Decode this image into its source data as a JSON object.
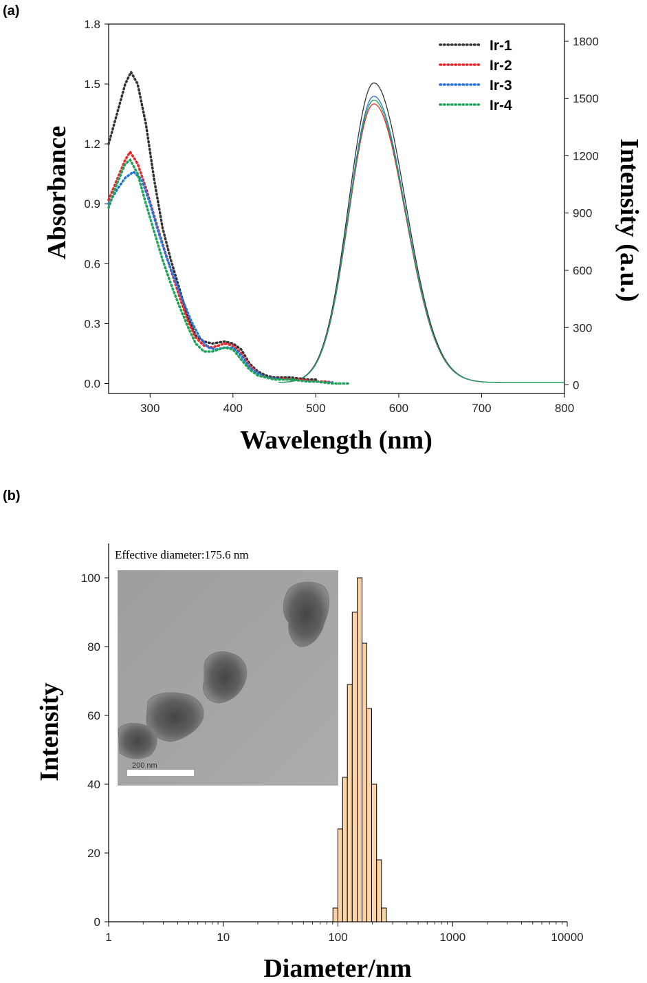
{
  "chart_data": [
    {
      "panel": "(a)",
      "type": "line",
      "xlabel": "Wavelength (nm)",
      "ylabel": "Absorbance",
      "y2label": "Intensity (a.u.)",
      "xlim": [
        250,
        800
      ],
      "ylim": [
        -0.05,
        1.8
      ],
      "y2lim": [
        -45,
        1890
      ],
      "xticks": [
        300,
        400,
        500,
        600,
        700,
        800
      ],
      "yticks": [
        "0.0",
        "0.3",
        "0.6",
        "0.9",
        "1.2",
        "1.5",
        "1.8"
      ],
      "y2ticks": [
        "0",
        "300",
        "600",
        "900",
        "1200",
        "1500",
        "1800"
      ],
      "legend_position": "top-right",
      "colors": {
        "Ir-1": "#333333",
        "Ir-2": "#e8282a",
        "Ir-3": "#2673d9",
        "Ir-4": "#1fa35a"
      },
      "absorbance_series": [
        {
          "name": "Ir-1",
          "x": [
            250,
            260,
            270,
            277,
            285,
            295,
            305,
            315,
            325,
            335,
            345,
            355,
            365,
            375,
            390,
            400,
            410,
            420,
            430,
            440,
            450,
            460,
            470,
            480,
            490,
            500
          ],
          "values": [
            1.2,
            1.35,
            1.5,
            1.56,
            1.5,
            1.3,
            1.02,
            0.78,
            0.62,
            0.48,
            0.34,
            0.24,
            0.21,
            0.2,
            0.21,
            0.2,
            0.17,
            0.1,
            0.06,
            0.04,
            0.03,
            0.03,
            0.03,
            0.025,
            0.02,
            0.02
          ]
        },
        {
          "name": "Ir-2",
          "x": [
            250,
            260,
            270,
            276,
            285,
            295,
            305,
            315,
            325,
            335,
            345,
            355,
            365,
            375,
            390,
            400,
            410,
            420,
            430,
            440,
            450,
            460,
            470,
            480,
            490,
            500,
            510,
            520
          ],
          "values": [
            0.92,
            1.02,
            1.12,
            1.16,
            1.1,
            0.98,
            0.84,
            0.7,
            0.57,
            0.44,
            0.32,
            0.23,
            0.19,
            0.18,
            0.2,
            0.19,
            0.15,
            0.09,
            0.05,
            0.03,
            0.025,
            0.025,
            0.02,
            0.02,
            0.015,
            0.01,
            0.01,
            0.005
          ]
        },
        {
          "name": "Ir-3",
          "x": [
            250,
            260,
            270,
            280,
            290,
            300,
            310,
            320,
            330,
            340,
            350,
            360,
            370,
            380,
            390,
            400,
            410,
            420,
            430,
            440,
            450,
            460,
            470,
            480,
            490,
            500,
            510,
            520
          ],
          "values": [
            0.9,
            0.97,
            1.03,
            1.06,
            1.02,
            0.9,
            0.76,
            0.63,
            0.52,
            0.41,
            0.31,
            0.23,
            0.18,
            0.17,
            0.18,
            0.18,
            0.14,
            0.08,
            0.05,
            0.03,
            0.025,
            0.02,
            0.02,
            0.015,
            0.01,
            0.01,
            0.005,
            0.005
          ]
        },
        {
          "name": "Ir-4",
          "x": [
            250,
            260,
            270,
            276,
            285,
            295,
            305,
            315,
            325,
            335,
            345,
            355,
            365,
            375,
            390,
            400,
            410,
            420,
            430,
            440,
            450,
            460,
            470,
            480,
            490,
            500,
            510,
            520,
            530,
            540
          ],
          "values": [
            0.88,
            1.0,
            1.1,
            1.12,
            1.05,
            0.9,
            0.76,
            0.62,
            0.5,
            0.39,
            0.29,
            0.2,
            0.16,
            0.16,
            0.18,
            0.17,
            0.12,
            0.07,
            0.04,
            0.03,
            0.02,
            0.02,
            0.02,
            0.015,
            0.01,
            0.01,
            0.005,
            0.0,
            0.0,
            0.0
          ]
        }
      ],
      "emission_series": [
        {
          "name": "Ir-1",
          "peak_x": 570,
          "peak": 1570,
          "width_left": 30,
          "width_right": 38
        },
        {
          "name": "Ir-2",
          "peak_x": 570,
          "peak": 1460,
          "width_left": 30,
          "width_right": 38
        },
        {
          "name": "Ir-3",
          "peak_x": 570,
          "peak": 1500,
          "width_left": 30,
          "width_right": 38
        },
        {
          "name": "Ir-4",
          "peak_x": 570,
          "peak": 1480,
          "width_left": 30,
          "width_right": 38
        }
      ]
    },
    {
      "panel": "(b)",
      "type": "bar",
      "xlabel": "Diameter/nm",
      "ylabel": "Intensity",
      "x_scale": "log",
      "xlim": [
        1,
        10000
      ],
      "ylim": [
        0,
        110
      ],
      "xticks": [
        "1",
        "10",
        "100",
        "1000",
        "10000"
      ],
      "yticks": [
        "0",
        "20",
        "40",
        "60",
        "80",
        "100"
      ],
      "bar_color": "#fbd3a4",
      "annotation": "Effective diameter:175.6 nm",
      "categories": [
        95,
        105,
        115,
        127,
        140,
        155,
        170,
        187,
        207,
        228,
        252,
        278
      ],
      "values": [
        4,
        27,
        42,
        69,
        90,
        100,
        81,
        62,
        40,
        18,
        4,
        0
      ]
    }
  ],
  "inset": {
    "scale_bar_label": "200 nm"
  }
}
